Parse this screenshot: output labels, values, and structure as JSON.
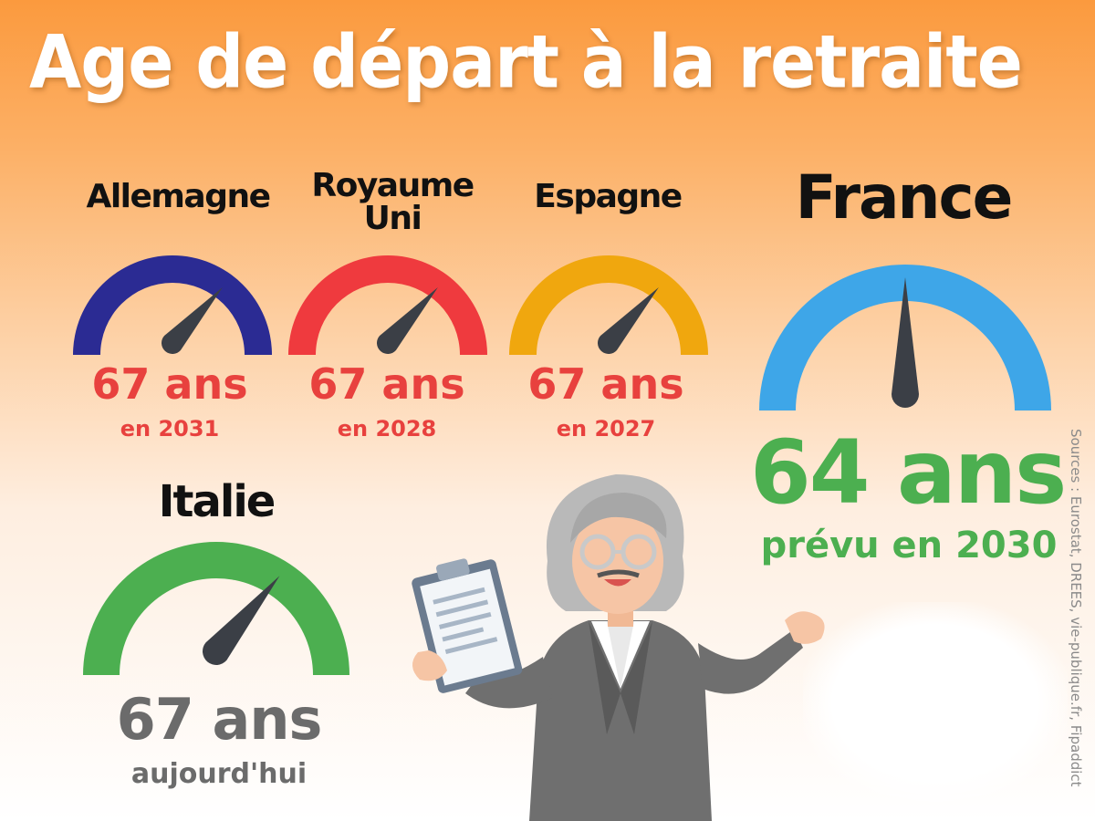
{
  "title": "Age de départ à la retraite",
  "sources": "Sources : Eurostat, DREES, vie-publique.fr, Fipaddict",
  "countries": [
    {
      "name": "Allemagne",
      "age": "67 ans",
      "note": "en 2031",
      "gauge_color": "#2b2b93",
      "age_color": "#e8413e"
    },
    {
      "name": "Royaume Uni",
      "age": "67 ans",
      "note": "en 2028",
      "gauge_color": "#ef3a3e",
      "age_color": "#e8413e"
    },
    {
      "name": "Espagne",
      "age": "67 ans",
      "note": "en 2027",
      "gauge_color": "#f0a70e",
      "age_color": "#e8413e"
    },
    {
      "name": "France",
      "age": "64 ans",
      "note": "prévu en 2030",
      "gauge_color": "#3ea6e8",
      "age_color": "#4caf50"
    },
    {
      "name": "Italie",
      "age": "67 ans",
      "note": "aujourd'hui",
      "gauge_color": "#4caf50",
      "age_color": "#6b6b6b"
    }
  ],
  "illustration": "retiree-woman-with-clipboard"
}
